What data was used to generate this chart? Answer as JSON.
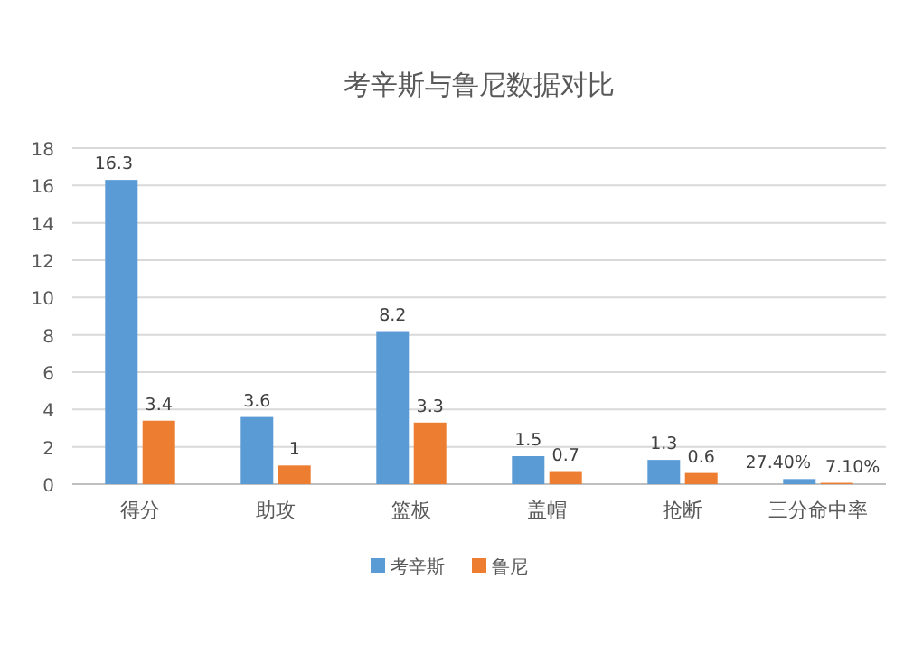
{
  "chart_data": {
    "type": "bar",
    "title": "考辛斯与鲁尼数据对比",
    "categories": [
      "得分",
      "助攻",
      "篮板",
      "盖帽",
      "抢断",
      "三分命中率"
    ],
    "series": [
      {
        "name": "考辛斯",
        "color": "#5b9bd5",
        "values": [
          16.3,
          3.6,
          8.2,
          1.5,
          1.3,
          0.274
        ],
        "value_labels": [
          "16.3",
          "3.6",
          "8.2",
          "1.5",
          "1.3",
          "27.40%"
        ]
      },
      {
        "name": "鲁尼",
        "color": "#ed7d31",
        "values": [
          3.4,
          1,
          3.3,
          0.7,
          0.6,
          0.071
        ],
        "value_labels": [
          "3.4",
          "1",
          "3.3",
          "0.7",
          "0.6",
          "7.10%"
        ]
      }
    ],
    "ylim": [
      0,
      18
    ],
    "yticks": [
      0,
      2,
      4,
      6,
      8,
      10,
      12,
      14,
      16,
      18
    ],
    "grid": "y",
    "legend": "bottom"
  }
}
